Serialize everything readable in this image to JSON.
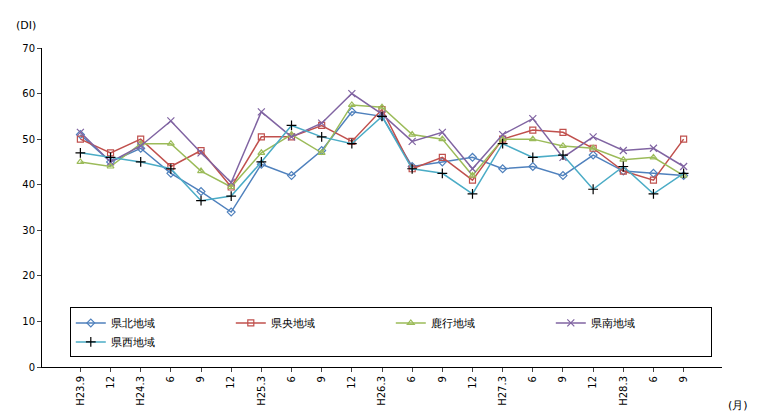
{
  "chart_data": {
    "type": "line",
    "y_label": "(DI)",
    "x_label": "(月)",
    "categories": [
      "H23.9",
      "12",
      "H24.3",
      "6",
      "9",
      "12",
      "H25.3",
      "6",
      "9",
      "12",
      "H26.3",
      "6",
      "9",
      "12",
      "H27.3",
      "6",
      "9",
      "12",
      "H28.3",
      "6",
      "9"
    ],
    "ylim": [
      0,
      70
    ],
    "yticks": [
      0,
      10,
      20,
      30,
      40,
      50,
      60,
      70
    ],
    "grid": false,
    "legend": "bottom right",
    "series": [
      {
        "name": "県北地域",
        "color": "#4f81bd",
        "marker": "diamond",
        "values": [
          51,
          45,
          48,
          42.5,
          38.5,
          34,
          44.5,
          42,
          47.5,
          56,
          55,
          44,
          45,
          46,
          43.5,
          44,
          42,
          46.5,
          43,
          42.5,
          42
        ]
      },
      {
        "name": "県央地域",
        "color": "#c0504d",
        "marker": "square",
        "values": [
          50,
          47,
          50,
          44,
          47.5,
          39.5,
          50.5,
          50.5,
          53,
          49.5,
          56.5,
          43.5,
          46,
          41,
          50,
          52,
          51.5,
          48,
          43,
          41,
          50
        ]
      },
      {
        "name": "鹿行地域",
        "color": "#9bbb59",
        "marker": "triangle",
        "values": [
          45,
          44,
          49,
          49,
          43,
          39.5,
          47,
          51,
          47,
          57.5,
          57,
          51,
          50,
          42,
          50,
          50,
          48.5,
          48,
          45.5,
          46,
          42
        ]
      },
      {
        "name": "県南地域",
        "color": "#8064a2",
        "marker": "x",
        "values": [
          51.5,
          45,
          48.5,
          54,
          47,
          40.5,
          56,
          50.5,
          53.5,
          60,
          55.5,
          49.5,
          51.5,
          43.5,
          51,
          54.5,
          46,
          50.5,
          47.5,
          48,
          44
        ]
      },
      {
        "name": "県西地域",
        "color": "#4bacc6",
        "marker": "cross",
        "values": [
          47,
          46,
          45,
          43.5,
          36.5,
          37.5,
          45,
          53,
          50.5,
          49,
          55,
          43.5,
          42.5,
          38,
          49,
          46,
          46.5,
          39,
          44,
          38,
          42.5
        ]
      }
    ]
  }
}
